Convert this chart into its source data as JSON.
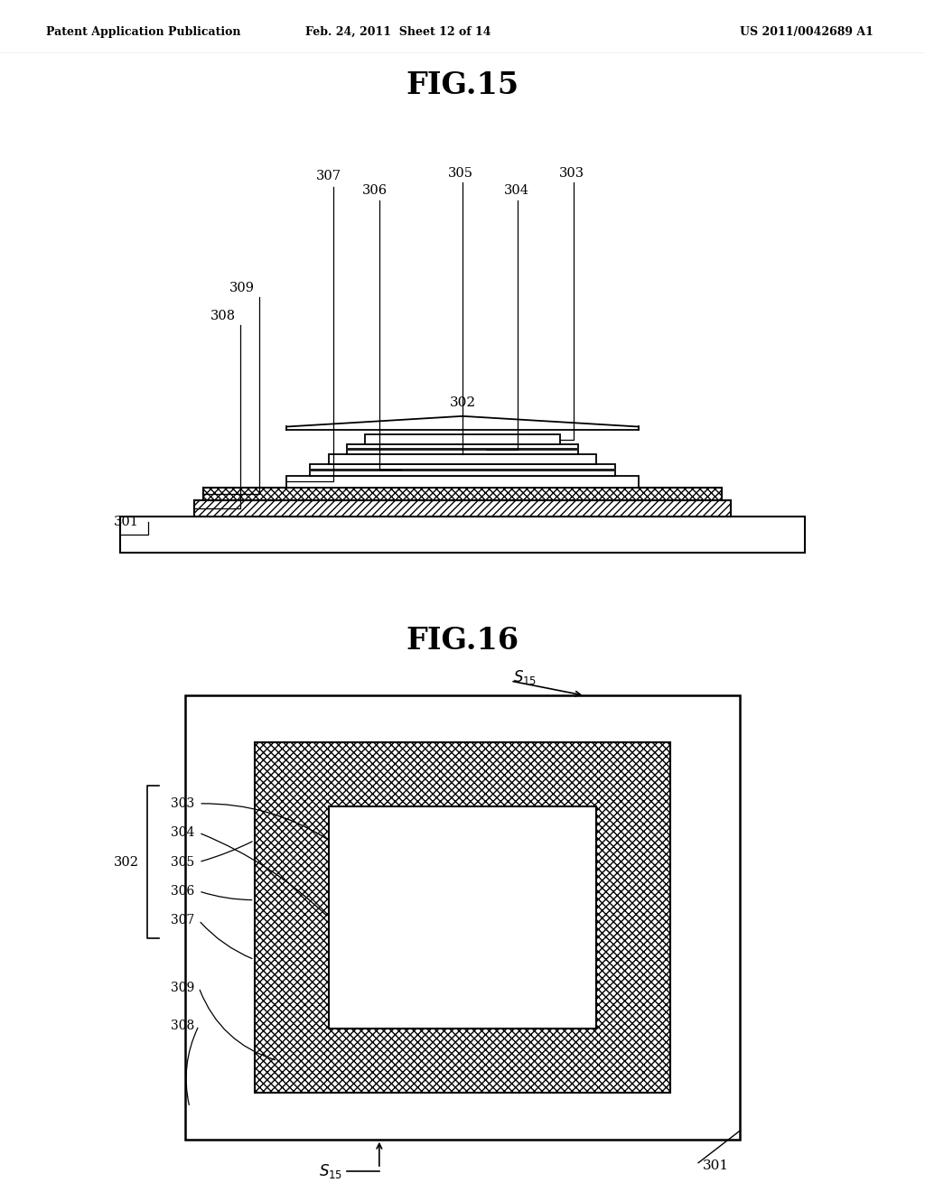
{
  "fig_title_1": "FIG.15",
  "fig_title_2": "FIG.16",
  "header_left": "Patent Application Publication",
  "header_mid": "Feb. 24, 2011  Sheet 12 of 14",
  "header_right": "US 2011/0042689 A1",
  "bg_color": "#ffffff",
  "line_color": "#000000"
}
